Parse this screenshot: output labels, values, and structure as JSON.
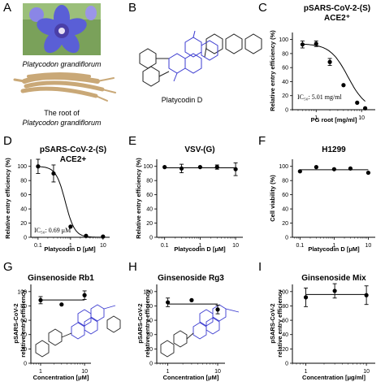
{
  "panel_labels": [
    "A",
    "B",
    "C",
    "D",
    "E",
    "F",
    "G",
    "H",
    "I"
  ],
  "panel_a": {
    "flower_caption": "Platycodon grandiflorum",
    "root_caption_line1": "The root of",
    "root_caption_line2": "Platycodon grandiflorum"
  },
  "panel_b": {
    "compound_label": "Platycodin D"
  },
  "colors": {
    "flower": "#5a5fd6",
    "root": "#d8b98a",
    "structure_blue": "#3b3bd0",
    "structure_black": "#222222"
  },
  "chart_data": [
    {
      "id": "C",
      "type": "scatter",
      "title": "pSARS-CoV-2-(S)",
      "subtitle": "ACE2⁺",
      "xlabel": "PG root [mg/ml]",
      "ylabel": "Relative entry efficiency (%)",
      "x_scale": "log",
      "x_ticks": [
        "1",
        "10"
      ],
      "y_ticks": [
        "0",
        "20",
        "40",
        "60",
        "80",
        "100"
      ],
      "ylim": [
        0,
        110
      ],
      "x": [
        0.5,
        1,
        2,
        4,
        8,
        12
      ],
      "y": [
        93,
        94,
        68,
        35,
        10,
        2
      ],
      "err": [
        5,
        4,
        5,
        0,
        0,
        0
      ],
      "annotation": "IC₅₀: 5.01 mg/ml",
      "fit": "sigmoid"
    },
    {
      "id": "D",
      "type": "scatter",
      "title": "pSARS-CoV-2-(S)",
      "subtitle": "ACE2+",
      "xlabel": "Platycodin D [μM]",
      "ylabel": "Relative entry efficiency (%)",
      "x_scale": "log",
      "x_ticks": [
        "0.1",
        "1",
        "10"
      ],
      "y_ticks": [
        "0",
        "20",
        "40",
        "60",
        "80",
        "100"
      ],
      "ylim": [
        0,
        110
      ],
      "x": [
        0.1,
        0.3,
        1,
        3,
        10
      ],
      "y": [
        100,
        90,
        15,
        2,
        1
      ],
      "err": [
        10,
        12,
        0,
        0,
        0
      ],
      "annotation": "IC₅₀: 0.69 μM",
      "fit": "sigmoid"
    },
    {
      "id": "E",
      "type": "scatter",
      "title": "VSV-(G)",
      "xlabel": "Platycodin D [μM]",
      "ylabel": "Relative entry efficiency (%)",
      "x_scale": "log",
      "x_ticks": [
        "0.1",
        "1",
        "10"
      ],
      "y_ticks": [
        "0",
        "20",
        "40",
        "60",
        "80",
        "100"
      ],
      "ylim": [
        0,
        110
      ],
      "x": [
        0.1,
        0.3,
        1,
        3,
        10
      ],
      "y": [
        99,
        97,
        99,
        99,
        96
      ],
      "err": [
        0,
        6,
        0,
        3,
        9
      ],
      "fit": "flat"
    },
    {
      "id": "F",
      "type": "scatter",
      "title": "H1299",
      "xlabel": "Platycodin D [μM]",
      "ylabel": "Cell viability (%)",
      "x_scale": "log",
      "x_ticks": [
        "0.1",
        "1",
        "10"
      ],
      "y_ticks": [
        "0",
        "20",
        "40",
        "60",
        "80",
        "100"
      ],
      "ylim": [
        0,
        110
      ],
      "x": [
        0.1,
        0.3,
        1,
        3,
        10
      ],
      "y": [
        93,
        99,
        96,
        97,
        91
      ],
      "err": [
        0,
        0,
        0,
        0,
        0
      ],
      "fit": "flat"
    },
    {
      "id": "G",
      "type": "scatter",
      "title": "Ginsenoside Rb1",
      "xlabel": "Concentration [μM]",
      "ylabel": "pSARS-CoV-2 relative entry efficiency",
      "ylabel_line1": "pSARS-CoV-2",
      "ylabel_line2": "relative entry efficiency",
      "x_scale": "log",
      "x_ticks": [
        "1",
        "10"
      ],
      "y_ticks": [
        "0",
        "20",
        "40",
        "60",
        "80",
        "100"
      ],
      "ylim": [
        0,
        110
      ],
      "x": [
        1,
        3,
        10
      ],
      "y": [
        88,
        82,
        95
      ],
      "err": [
        5,
        0,
        6
      ],
      "fit": "flat"
    },
    {
      "id": "H",
      "type": "scatter",
      "title": "Ginsenoside Rg3",
      "xlabel": "Concentration [μM]",
      "ylabel": "pSARS-CoV-2 relative entry efficiency",
      "ylabel_line1": "pSARS-CoV-2",
      "ylabel_line2": "relative entry efficiency",
      "x_scale": "log",
      "x_ticks": [
        "1",
        "10"
      ],
      "y_ticks": [
        "0",
        "20",
        "40",
        "60",
        "80",
        "100"
      ],
      "ylim": [
        0,
        110
      ],
      "x": [
        1,
        3,
        10
      ],
      "y": [
        85,
        88,
        75
      ],
      "err": [
        6,
        0,
        6
      ],
      "fit": "flat"
    },
    {
      "id": "I",
      "type": "scatter",
      "title": "Ginsenoside Mix",
      "xlabel": "Concentration [μg/ml]",
      "ylabel": "pSARS-CoV-2 relative entry efficiency",
      "ylabel_line1": "pSARS-CoV-2",
      "ylabel_line2": "relative entry efficiency",
      "x_scale": "log",
      "x_ticks": [
        "1",
        "10"
      ],
      "y_ticks": [
        "0",
        "20",
        "40",
        "60",
        "80",
        "100"
      ],
      "ylim": [
        0,
        110
      ],
      "x": [
        1,
        3,
        10
      ],
      "y": [
        92,
        101,
        95
      ],
      "err": [
        13,
        10,
        13
      ],
      "fit": "flat"
    }
  ]
}
